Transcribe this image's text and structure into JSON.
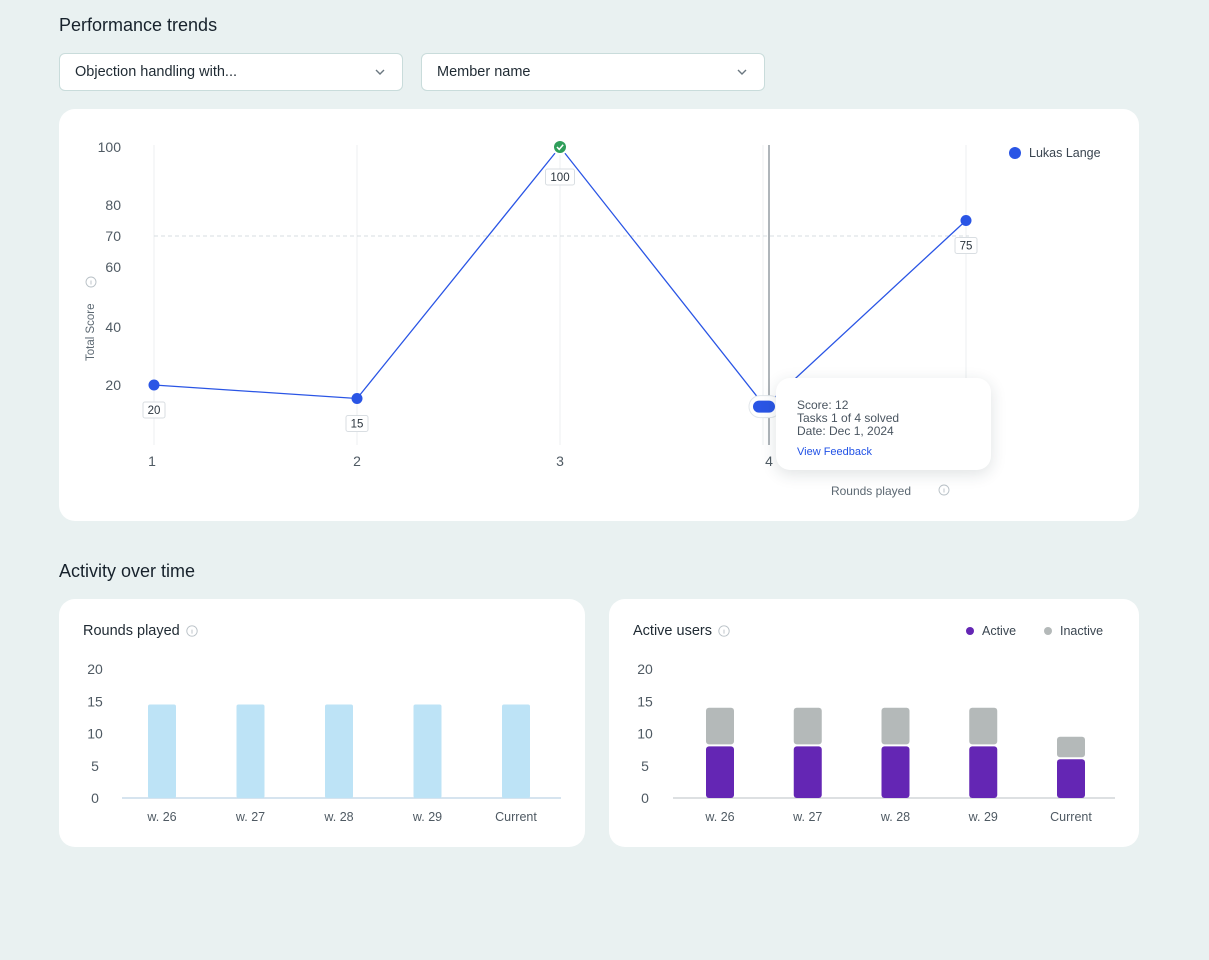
{
  "performance": {
    "title": "Performance trends",
    "filter_scenario": "Objection handling with...",
    "filter_member": "Member name",
    "chart_data": {
      "type": "line",
      "ylabel": "Total Score",
      "xlabel": "Rounds played",
      "y_ticks": [
        100,
        80,
        70,
        60,
        40,
        20
      ],
      "x": [
        1,
        2,
        3,
        4,
        5
      ],
      "x_tick_labels": [
        "1",
        "2",
        "3",
        "4"
      ],
      "reference_line": 70,
      "legend": "top-right",
      "series": [
        {
          "name": "Lukas Lange",
          "color": "#2a55e5",
          "values": [
            20,
            15,
            100,
            12,
            75
          ],
          "labels": [
            "20",
            "15",
            "100",
            "",
            "75"
          ]
        }
      ]
    },
    "tooltip": {
      "score": "Score: 12",
      "tasks": "Tasks 1 of 4 solved",
      "date": "Date: Dec 1, 2024",
      "link": "View Feedback"
    }
  },
  "activity": {
    "title": "Activity over time",
    "rounds": {
      "title": "Rounds played",
      "chart_data": {
        "type": "bar",
        "categories": [
          "w. 26",
          "w. 27",
          "w. 28",
          "w. 29",
          "Current"
        ],
        "values": [
          14.5,
          14.5,
          14.5,
          14.5,
          14.5
        ],
        "y_ticks": [
          20,
          15,
          10,
          5,
          0
        ],
        "ylim": [
          0,
          20
        ],
        "color": "#bde3f6"
      }
    },
    "users": {
      "title": "Active users",
      "legend_active": "Active",
      "legend_inactive": "Inactive",
      "chart_data": {
        "type": "bar",
        "stacked": true,
        "categories": [
          "w. 26",
          "w. 27",
          "w. 28",
          "w. 29",
          "Current"
        ],
        "y_ticks": [
          20,
          15,
          10,
          5,
          0
        ],
        "ylim": [
          0,
          20
        ],
        "series": [
          {
            "name": "Active",
            "color": "#6426b4",
            "values": [
              8,
              8,
              8,
              8,
              6
            ]
          },
          {
            "name": "Inactive",
            "color": "#b4b9b9",
            "values": [
              6,
              6,
              6,
              6,
              3.5
            ]
          }
        ]
      }
    }
  }
}
